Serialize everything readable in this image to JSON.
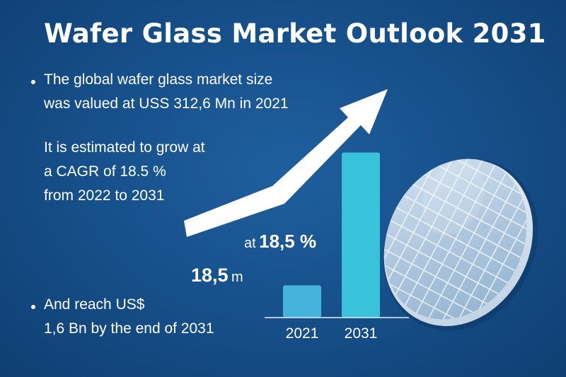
{
  "title": "Wafer Glass Market Outlook 2031",
  "bullets": [
    {
      "lines": [
        "The global wafer glass market size",
        "was valued at USS 312,6 Mn in 2021"
      ]
    },
    {
      "lines": [
        "And reach US$",
        "1,6 Bn by the end of 2031"
      ]
    }
  ],
  "growth_text": [
    "It is estimated to grow at",
    "a CAGR of 18.5 %",
    "from 2022 to 2031"
  ],
  "annotations": {
    "rate_prefix": "at",
    "rate_value": "18,5 %",
    "start_value": "18,5",
    "start_unit": "m"
  },
  "icons": [
    "trend-arrow-icon",
    "glass-wafer-icon"
  ],
  "colors": {
    "background": "#17518c",
    "bar_2021": "#45b3dc",
    "bar_2031": "#39c3da",
    "arrow": "#ffffff"
  },
  "chart_data": {
    "type": "bar",
    "categories": [
      "2021",
      "2031"
    ],
    "values": [
      312.6,
      1600
    ],
    "title": "",
    "xlabel": "",
    "ylabel": "",
    "ylim": [
      0,
      1700
    ]
  }
}
